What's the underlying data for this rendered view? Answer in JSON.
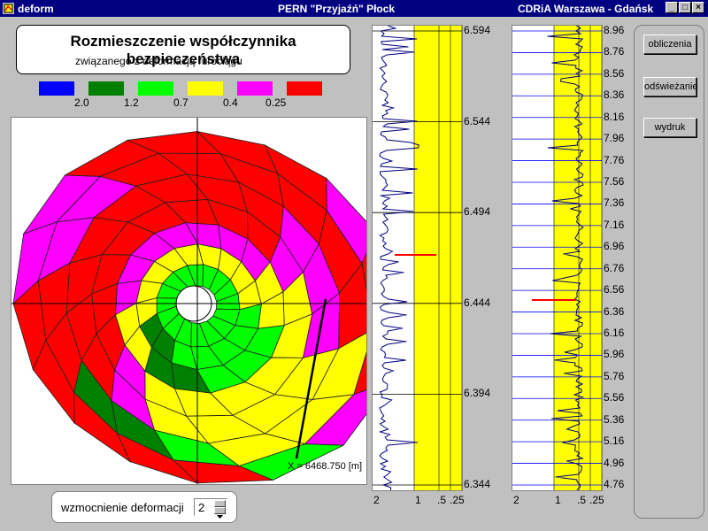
{
  "window": {
    "app_name": "deform",
    "title_center": "PERN \"Przyjaźń\" Płock",
    "title_right": "CDRiA Warszawa - Gdańsk",
    "icons": [
      "app-icon",
      "minimize-icon",
      "maximize-icon",
      "close-icon"
    ]
  },
  "header": {
    "title": "Rozmieszczenie współczynnika bezpieczeństwa",
    "subtitle": "związanego z deformacją rurociągu"
  },
  "legend": {
    "colors": [
      "#0000ff",
      "#008000",
      "#00ff00",
      "#ffff00",
      "#ff00ff",
      "#ff0000"
    ],
    "labels": [
      "2.0",
      "1.2",
      "0.7",
      "0.4",
      "0.25"
    ]
  },
  "plot": {
    "annotation": "X = 6468.750 [m]"
  },
  "gauge1": {
    "y_ticks": [
      "6.594",
      "6.544",
      "6.494",
      "6.444",
      "6.394",
      "6.344"
    ],
    "x_ticks": [
      "2",
      "1",
      ".5",
      ".25"
    ]
  },
  "gauge2": {
    "y_ticks": [
      "8.96",
      "8.76",
      "8.56",
      "8.36",
      "8.16",
      "7.96",
      "7.76",
      "7.56",
      "7.36",
      "7.16",
      "6.96",
      "6.76",
      "6.56",
      "6.36",
      "6.16",
      "5.96",
      "5.76",
      "5.56",
      "5.36",
      "5.16",
      "4.96",
      "4.76"
    ],
    "x_ticks": [
      "2",
      "1",
      ".5",
      ".25"
    ]
  },
  "buttons": {
    "calc": "obliczenia",
    "refresh": "odświeżanie",
    "print": "wydruk"
  },
  "amplification": {
    "label": "wzmocnienie deformacji",
    "value": "2"
  }
}
